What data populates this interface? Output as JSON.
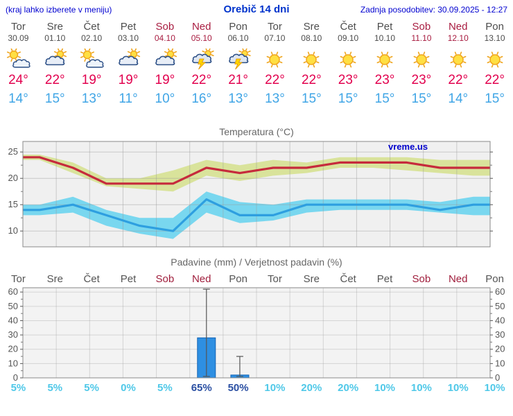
{
  "header": {
    "note": "(kraj lahko izberete v meniju)",
    "title": "Orebič 14 dni",
    "updated": "Zadnja posodobitev: 30.09.2025 - 12:27"
  },
  "days": [
    {
      "name": "Tor",
      "date": "30.09",
      "weekend": false,
      "icon": "partly-cloudy",
      "tmax": "24°",
      "tmin": "14°"
    },
    {
      "name": "Sre",
      "date": "01.10",
      "weekend": false,
      "icon": "mostly-cloudy",
      "tmax": "22°",
      "tmin": "15°"
    },
    {
      "name": "Čet",
      "date": "02.10",
      "weekend": false,
      "icon": "partly-cloudy",
      "tmax": "19°",
      "tmin": "13°"
    },
    {
      "name": "Pet",
      "date": "03.10",
      "weekend": false,
      "icon": "mostly-cloudy",
      "tmax": "19°",
      "tmin": "11°"
    },
    {
      "name": "Sob",
      "date": "04.10",
      "weekend": true,
      "icon": "mostly-cloudy",
      "tmax": "19°",
      "tmin": "10°"
    },
    {
      "name": "Ned",
      "date": "05.10",
      "weekend": true,
      "icon": "thunder",
      "tmax": "22°",
      "tmin": "16°"
    },
    {
      "name": "Pon",
      "date": "06.10",
      "weekend": false,
      "icon": "thunder",
      "tmax": "21°",
      "tmin": "13°"
    },
    {
      "name": "Tor",
      "date": "07.10",
      "weekend": false,
      "icon": "sunny",
      "tmax": "22°",
      "tmin": "13°"
    },
    {
      "name": "Sre",
      "date": "08.10",
      "weekend": false,
      "icon": "sunny",
      "tmax": "22°",
      "tmin": "15°"
    },
    {
      "name": "Čet",
      "date": "09.10",
      "weekend": false,
      "icon": "sunny",
      "tmax": "23°",
      "tmin": "15°"
    },
    {
      "name": "Pet",
      "date": "10.10",
      "weekend": false,
      "icon": "sunny",
      "tmax": "23°",
      "tmin": "15°"
    },
    {
      "name": "Sob",
      "date": "11.10",
      "weekend": true,
      "icon": "sunny",
      "tmax": "23°",
      "tmin": "15°"
    },
    {
      "name": "Ned",
      "date": "12.10",
      "weekend": true,
      "icon": "sunny",
      "tmax": "22°",
      "tmin": "14°"
    },
    {
      "name": "Pon",
      "date": "13.10",
      "weekend": false,
      "icon": "sunny",
      "tmax": "22°",
      "tmin": "15°"
    }
  ],
  "chart_data": [
    {
      "type": "line",
      "title": "Temperatura (°C)",
      "watermark": "vreme.us",
      "categories": [
        "Tor",
        "Sre",
        "Čet",
        "Pet",
        "Sob",
        "Ned",
        "Pon",
        "Tor",
        "Sre",
        "Čet",
        "Pet",
        "Sob",
        "Ned",
        "Pon"
      ],
      "ylim": [
        7,
        27
      ],
      "yticks": [
        10,
        15,
        20,
        25
      ],
      "band_colors": {
        "max": "#d9e39b",
        "min": "#79d7ef"
      },
      "series": [
        {
          "name": "max-temperature",
          "color": "#c62b3c",
          "values": [
            24,
            22,
            19,
            19,
            19,
            22,
            21,
            22,
            22,
            23,
            23,
            23,
            22,
            22
          ]
        },
        {
          "name": "max-range-high",
          "values": [
            24.5,
            23,
            20,
            20,
            21.5,
            23.5,
            22.5,
            23.5,
            23,
            24,
            24,
            24,
            23.5,
            23.5
          ]
        },
        {
          "name": "max-range-low",
          "values": [
            23.5,
            21,
            18.5,
            18,
            17.5,
            20.5,
            19.5,
            20.5,
            21,
            22,
            22,
            21.5,
            21,
            20.5
          ]
        },
        {
          "name": "min-temperature",
          "color": "#2e9fe0",
          "values": [
            14,
            15,
            13,
            11,
            10,
            16,
            13,
            13,
            15,
            15,
            15,
            15,
            14,
            15
          ]
        },
        {
          "name": "min-range-high",
          "values": [
            15,
            16.5,
            14,
            12.5,
            12.5,
            17.5,
            15.5,
            15,
            16,
            16,
            16,
            16,
            15.5,
            16.5
          ]
        },
        {
          "name": "min-range-low",
          "values": [
            13,
            13.5,
            11,
            9.5,
            8.5,
            13.5,
            11.5,
            12,
            13.5,
            14,
            14,
            14,
            13.5,
            13
          ]
        }
      ]
    },
    {
      "type": "bar",
      "title": "Padavine (mm) / Verjetnost padavin (%)",
      "categories": [
        "Tor",
        "Sre",
        "Čet",
        "Pet",
        "Sob",
        "Ned",
        "Pon",
        "Tor",
        "Sre",
        "Čet",
        "Pet",
        "Sob",
        "Ned",
        "Pon"
      ],
      "ylim": [
        0,
        63
      ],
      "yticks": [
        0,
        10,
        20,
        30,
        40,
        50,
        60
      ],
      "bar_color": "#2e8fe2",
      "bar_border": "#1565b5",
      "values": [
        0,
        0,
        0,
        0,
        0,
        28,
        2,
        0,
        0,
        0,
        0,
        0,
        0,
        0
      ],
      "whisker_high": [
        0,
        0,
        0,
        0,
        0,
        62,
        15,
        0,
        0,
        0,
        0,
        0,
        0,
        0
      ],
      "whisker_low": [
        0,
        0,
        0,
        0,
        0,
        1,
        1,
        0,
        0,
        0,
        0,
        0,
        0,
        0
      ],
      "pop_labels": [
        "5%",
        "5%",
        "5%",
        "0%",
        "5%",
        "65%",
        "50%",
        "10%",
        "20%",
        "20%",
        "10%",
        "10%",
        "10%",
        "10%"
      ],
      "pop_emphasis": [
        false,
        false,
        false,
        false,
        false,
        true,
        true,
        false,
        false,
        false,
        false,
        false,
        false,
        false
      ]
    }
  ]
}
